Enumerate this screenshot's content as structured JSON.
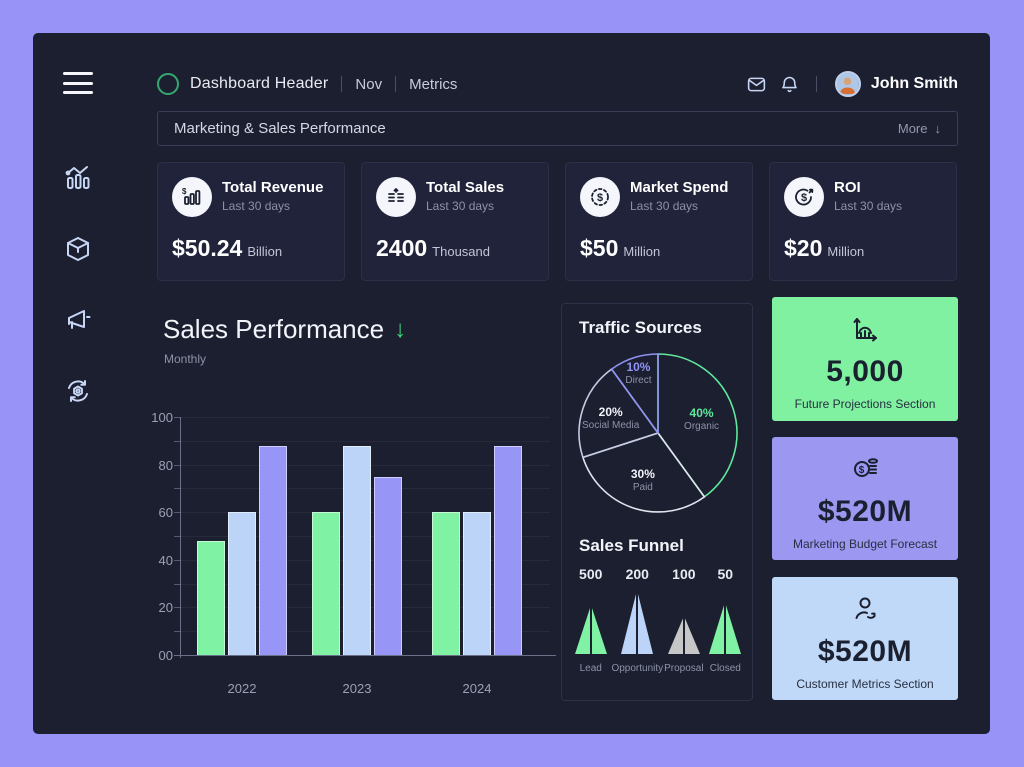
{
  "colors": {
    "page_bg": "#9793F7",
    "panel_bg": "#1C1F30",
    "accent_green": "#3FD67F",
    "bar_green": "#80F2A3",
    "bar_blue": "#BCD4F8",
    "bar_purple": "#9795F5"
  },
  "sidebar": {
    "items": [
      {
        "icon": "analytics-icon"
      },
      {
        "icon": "products-cube-icon"
      },
      {
        "icon": "marketing-megaphone-icon"
      },
      {
        "icon": "settings-sync-icon"
      }
    ]
  },
  "header": {
    "brand": "Dashboard Header",
    "nav": [
      {
        "label": "Nov"
      },
      {
        "label": "Metrics"
      }
    ],
    "user_name": "John Smith"
  },
  "toolbar": {
    "title": "Marketing & Sales Performance",
    "more_label": "More",
    "more_arrow": "↓"
  },
  "stats": {
    "cards": [
      {
        "icon": "revenue-bars-icon",
        "title": "Total Revenue",
        "period": "Last 30 days",
        "value": "$50.24",
        "unit": "Billion"
      },
      {
        "icon": "sales-coins-icon",
        "title": "Total Sales",
        "period": "Last 30 days",
        "value": "2400",
        "unit": "Thousand"
      },
      {
        "icon": "spend-dollar-icon",
        "title": "Market Spend",
        "period": "Last 30 days",
        "value": "$50",
        "unit": "Million"
      },
      {
        "icon": "roi-target-icon",
        "title": "ROI",
        "period": "Last 30 days",
        "value": "$20",
        "unit": "Million"
      }
    ]
  },
  "sales_section": {
    "title": "Sales Performance",
    "arrow": "↓",
    "subtitle": "Monthly"
  },
  "panels": {
    "traffic_title": "Traffic Sources",
    "funnel_title": "Sales Funnel"
  },
  "chart_data": [
    {
      "type": "bar",
      "title": "Sales Performance",
      "subtitle": "Monthly",
      "categories": [
        "2022",
        "2023",
        "2024"
      ],
      "series": [
        {
          "name": "green",
          "color": "#80F2A3",
          "values": [
            48,
            60,
            60
          ]
        },
        {
          "name": "blue",
          "color": "#BCD4F8",
          "values": [
            60,
            88,
            60
          ]
        },
        {
          "name": "purple",
          "color": "#9795F5",
          "values": [
            88,
            75,
            88
          ]
        }
      ],
      "ylim": [
        0,
        100
      ],
      "yticks": [
        0,
        20,
        40,
        60,
        80,
        100
      ],
      "ytick_labels": [
        "00",
        "20",
        "40",
        "60",
        "80",
        "100"
      ],
      "grid": true,
      "legend": false
    },
    {
      "type": "pie",
      "title": "Traffic Sources",
      "style": "outline",
      "start": "top",
      "direction": "clockwise",
      "slices": [
        {
          "label": "Organic",
          "pct": 40,
          "color": "#5FE89C"
        },
        {
          "label": "Paid",
          "pct": 30,
          "color": "#E0E4EE",
          "pct_color": "#F2F4FA"
        },
        {
          "label": "Social Media",
          "pct": 20,
          "color": "#C3CBE3",
          "pct_color": "#F2F4FA"
        },
        {
          "label": "Direct",
          "pct": 10,
          "color": "#8F93F3"
        }
      ]
    },
    {
      "type": "funnel",
      "title": "Sales Funnel",
      "stages": [
        {
          "label": "Lead",
          "value": "500",
          "color": "#80F2A3"
        },
        {
          "label": "Opportunity",
          "value": "200",
          "color": "#BCD4F8"
        },
        {
          "label": "Proposal",
          "value": "100",
          "color": "#C7C7C7"
        },
        {
          "label": "Closed",
          "value": "50",
          "color": "#80F2A3"
        }
      ]
    }
  ],
  "right_cards": [
    {
      "icon": "growth-chart-icon",
      "value": "5,000",
      "label": "Future Projections Section",
      "bg": "#80F0A1"
    },
    {
      "icon": "coins-stack-icon",
      "value": "$520M",
      "label": "Marketing Budget Forecast",
      "bg": "#9C97F1"
    },
    {
      "icon": "customer-icon",
      "value": "$520M",
      "label": "Customer Metrics Section",
      "bg": "#C0D9F8"
    }
  ]
}
